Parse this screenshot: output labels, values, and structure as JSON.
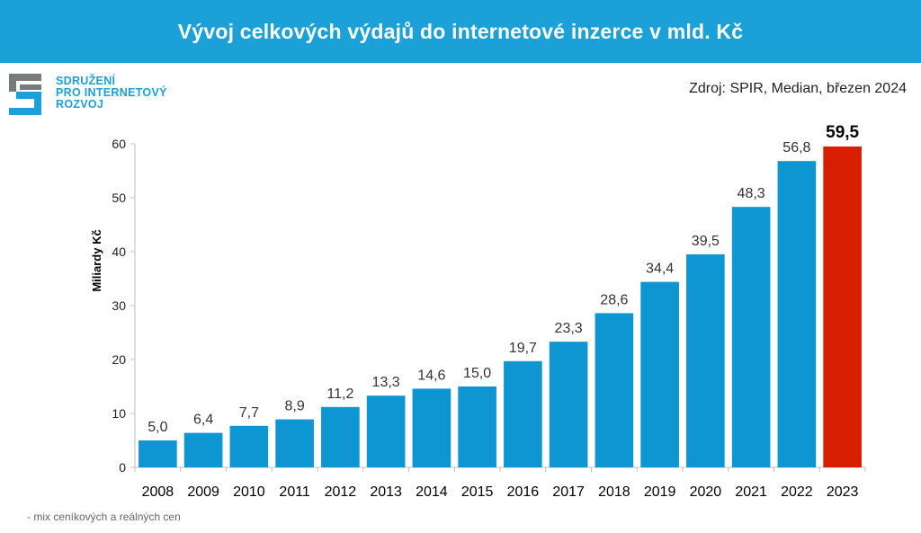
{
  "header": {
    "title": "Vývoj celkových výdajů do internetové inzerce v mld. Kč"
  },
  "logo": {
    "lines": [
      "SDRUŽENÍ",
      "PRO INTERNETOVÝ",
      "ROZVOJ"
    ],
    "colors": {
      "gray": "#7a7b7e",
      "blue": "#1ba1d8"
    }
  },
  "source": "Zdroj: SPIR, Median, březen 2024",
  "footnote": "- mix ceníkových a reálných cen",
  "chart_data": {
    "type": "bar",
    "title": "",
    "xlabel": "",
    "ylabel": "Miliardy Kč",
    "ylim": [
      0,
      60
    ],
    "yticks": [
      0,
      10,
      20,
      30,
      40,
      50,
      60
    ],
    "grid": false,
    "categories": [
      "2008",
      "2009",
      "2010",
      "2011",
      "2012",
      "2013",
      "2014",
      "2015",
      "2016",
      "2017",
      "2018",
      "2019",
      "2020",
      "2021",
      "2022",
      "2023"
    ],
    "values": [
      5.0,
      6.4,
      7.7,
      8.9,
      11.2,
      13.3,
      14.6,
      15.0,
      19.7,
      23.3,
      28.6,
      34.4,
      39.5,
      48.3,
      56.8,
      59.5
    ],
    "value_labels": [
      "5,0",
      "6,4",
      "7,7",
      "8,9",
      "11,2",
      "13,3",
      "14,6",
      "15,0",
      "19,7",
      "23,3",
      "28,6",
      "34,4",
      "39,5",
      "48,3",
      "56,8",
      "59,5"
    ],
    "highlight_index": 15,
    "colors": {
      "bar": "#0e96d2",
      "highlight": "#d71f00"
    }
  }
}
